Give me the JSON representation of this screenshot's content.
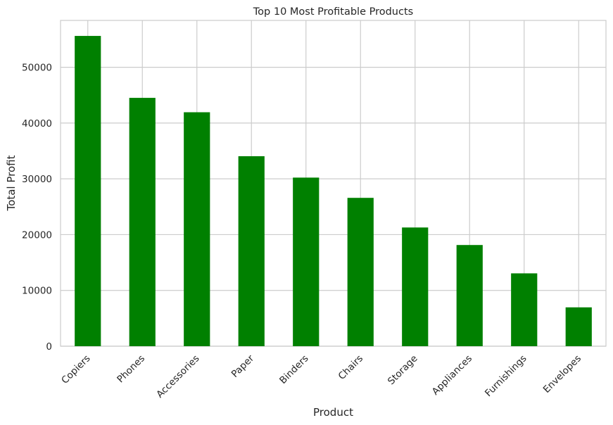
{
  "chart_data": {
    "type": "bar",
    "title": "Top 10 Most Profitable Products",
    "xlabel": "Product",
    "ylabel": "Total Profit",
    "categories": [
      "Copiers",
      "Phones",
      "Accessories",
      "Paper",
      "Binders",
      "Chairs",
      "Storage",
      "Appliances",
      "Furnishings",
      "Envelopes"
    ],
    "values": [
      55618,
      44516,
      41937,
      34054,
      30222,
      26590,
      21279,
      18138,
      13059,
      6964
    ],
    "yticks": [
      0,
      10000,
      20000,
      30000,
      40000,
      50000
    ],
    "ylim": [
      0,
      58400
    ],
    "grid": true,
    "bar_color": "#008000",
    "grid_color": "#cccccc"
  }
}
